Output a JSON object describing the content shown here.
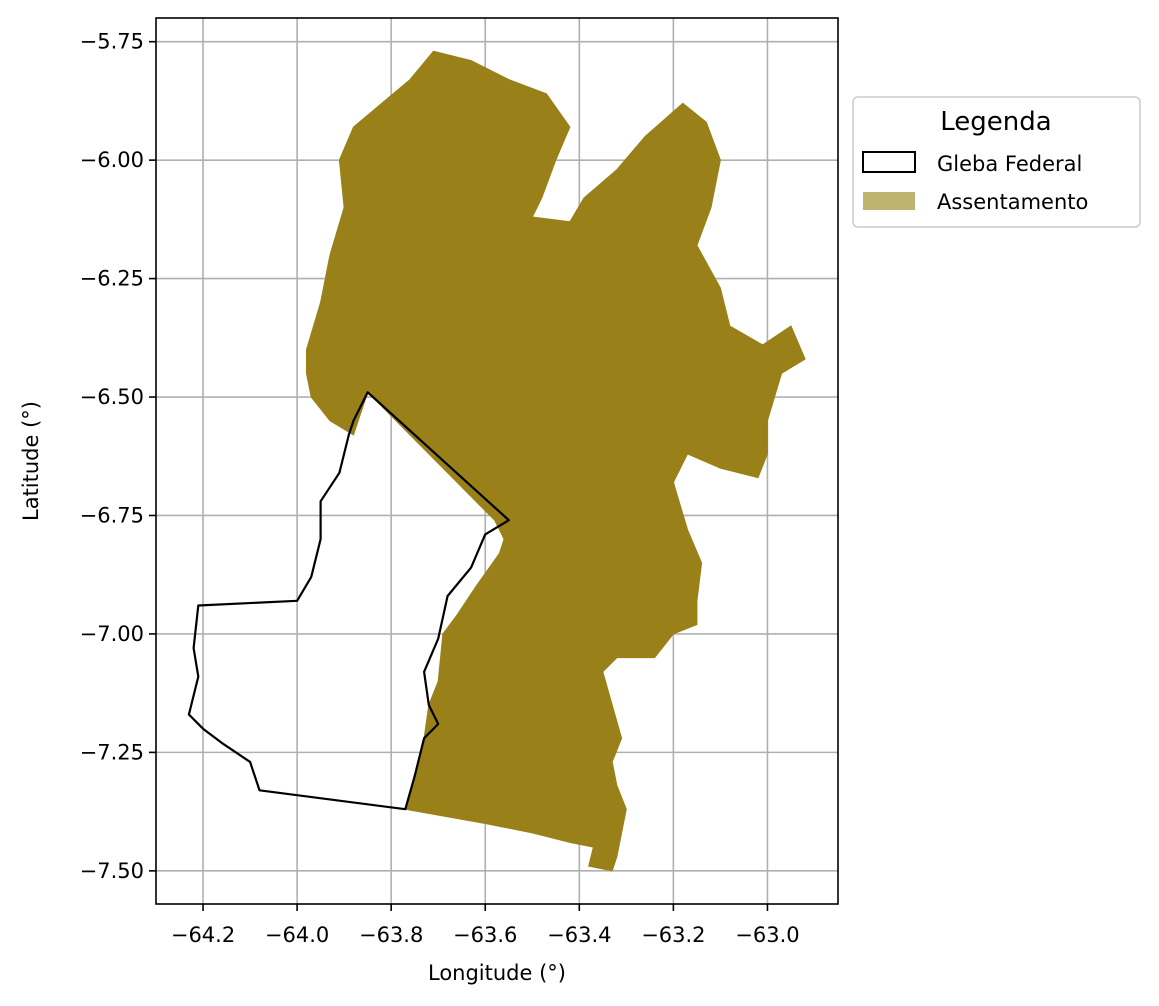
{
  "chart_data": {
    "type": "map",
    "xlabel": "Longitude (°)",
    "ylabel": "Latitude (°)",
    "xlim": [
      -64.3,
      -62.85
    ],
    "ylim": [
      -7.57,
      -5.7
    ],
    "xticks": [
      -64.2,
      -64.0,
      -63.8,
      -63.6,
      -63.4,
      -63.2,
      -63.0
    ],
    "xtick_labels": [
      "−64.2",
      "−64.0",
      "−63.8",
      "−63.6",
      "−63.4",
      "−63.2",
      "−63.0"
    ],
    "yticks": [
      -5.75,
      -6.0,
      -6.25,
      -6.5,
      -6.75,
      -7.0,
      -7.25,
      -7.5
    ],
    "ytick_labels": [
      "−5.75",
      "−6.00",
      "−6.25",
      "−6.50",
      "−6.75",
      "−7.00",
      "−7.25",
      "−7.50"
    ],
    "grid": true,
    "legend": {
      "title": "Legenda",
      "placement": "outside upper right",
      "items": [
        {
          "label": "Gleba Federal",
          "style": "outline",
          "edge_color": "#000000",
          "fill": "none"
        },
        {
          "label": "Assentamento",
          "style": "fill",
          "fill": "#bfb36f"
        }
      ]
    },
    "layers": [
      {
        "name": "Assentamento",
        "color": "#998019",
        "coords": [
          [
            -63.71,
            -5.77
          ],
          [
            -63.63,
            -5.79
          ],
          [
            -63.55,
            -5.83
          ],
          [
            -63.47,
            -5.86
          ],
          [
            -63.42,
            -5.93
          ],
          [
            -63.45,
            -6.0
          ],
          [
            -63.48,
            -6.08
          ],
          [
            -63.5,
            -6.12
          ],
          [
            -63.42,
            -6.13
          ],
          [
            -63.39,
            -6.08
          ],
          [
            -63.32,
            -6.02
          ],
          [
            -63.26,
            -5.95
          ],
          [
            -63.18,
            -5.88
          ],
          [
            -63.13,
            -5.92
          ],
          [
            -63.1,
            -6.0
          ],
          [
            -63.12,
            -6.1
          ],
          [
            -63.15,
            -6.18
          ],
          [
            -63.1,
            -6.27
          ],
          [
            -63.08,
            -6.35
          ],
          [
            -63.01,
            -6.39
          ],
          [
            -62.95,
            -6.35
          ],
          [
            -62.92,
            -6.42
          ],
          [
            -62.97,
            -6.45
          ],
          [
            -63.0,
            -6.55
          ],
          [
            -63.0,
            -6.62
          ],
          [
            -63.02,
            -6.67
          ],
          [
            -63.1,
            -6.65
          ],
          [
            -63.17,
            -6.62
          ],
          [
            -63.2,
            -6.68
          ],
          [
            -63.17,
            -6.78
          ],
          [
            -63.14,
            -6.85
          ],
          [
            -63.15,
            -6.93
          ],
          [
            -63.15,
            -6.98
          ],
          [
            -63.2,
            -7.0
          ],
          [
            -63.24,
            -7.05
          ],
          [
            -63.32,
            -7.05
          ],
          [
            -63.35,
            -7.08
          ],
          [
            -63.33,
            -7.15
          ],
          [
            -63.31,
            -7.22
          ],
          [
            -63.33,
            -7.27
          ],
          [
            -63.32,
            -7.32
          ],
          [
            -63.3,
            -7.37
          ],
          [
            -63.31,
            -7.42
          ],
          [
            -63.32,
            -7.47
          ],
          [
            -63.33,
            -7.5
          ],
          [
            -63.38,
            -7.49
          ],
          [
            -63.37,
            -7.45
          ],
          [
            -63.42,
            -7.44
          ],
          [
            -63.5,
            -7.42
          ],
          [
            -63.6,
            -7.4
          ],
          [
            -63.77,
            -7.37
          ],
          [
            -63.75,
            -7.3
          ],
          [
            -63.73,
            -7.22
          ],
          [
            -63.72,
            -7.15
          ],
          [
            -63.7,
            -7.1
          ],
          [
            -63.69,
            -7.0
          ],
          [
            -63.66,
            -6.96
          ],
          [
            -63.62,
            -6.9
          ],
          [
            -63.57,
            -6.83
          ],
          [
            -63.56,
            -6.8
          ],
          [
            -63.58,
            -6.76
          ],
          [
            -63.85,
            -6.49
          ],
          [
            -63.88,
            -6.58
          ],
          [
            -63.93,
            -6.55
          ],
          [
            -63.97,
            -6.5
          ],
          [
            -63.98,
            -6.45
          ],
          [
            -63.98,
            -6.4
          ],
          [
            -63.95,
            -6.3
          ],
          [
            -63.93,
            -6.2
          ],
          [
            -63.9,
            -6.1
          ],
          [
            -63.91,
            -6.0
          ],
          [
            -63.88,
            -5.93
          ],
          [
            -63.82,
            -5.88
          ],
          [
            -63.76,
            -5.83
          ]
        ]
      },
      {
        "name": "Gleba Federal",
        "color": "#000000",
        "coords": [
          [
            -63.85,
            -6.49
          ],
          [
            -63.55,
            -6.76
          ],
          [
            -63.6,
            -6.79
          ],
          [
            -63.63,
            -6.86
          ],
          [
            -63.68,
            -6.92
          ],
          [
            -63.7,
            -7.01
          ],
          [
            -63.73,
            -7.08
          ],
          [
            -63.72,
            -7.15
          ],
          [
            -63.7,
            -7.19
          ],
          [
            -63.73,
            -7.22
          ],
          [
            -63.75,
            -7.3
          ],
          [
            -63.77,
            -7.37
          ],
          [
            -64.08,
            -7.33
          ],
          [
            -64.1,
            -7.27
          ],
          [
            -64.16,
            -7.23
          ],
          [
            -64.2,
            -7.2
          ],
          [
            -64.23,
            -7.17
          ],
          [
            -64.21,
            -7.09
          ],
          [
            -64.22,
            -7.03
          ],
          [
            -64.21,
            -6.94
          ],
          [
            -64.0,
            -6.93
          ],
          [
            -63.97,
            -6.88
          ],
          [
            -63.95,
            -6.8
          ],
          [
            -63.95,
            -6.72
          ],
          [
            -63.91,
            -6.66
          ],
          [
            -63.89,
            -6.58
          ],
          [
            -63.88,
            -6.55
          ]
        ]
      }
    ]
  }
}
